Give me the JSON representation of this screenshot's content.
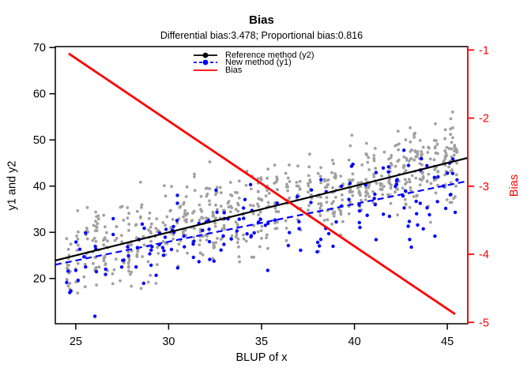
{
  "chart_data": {
    "type": "scatter",
    "title": "Bias",
    "subtitle": "Differential bias:3.478; Proportional bias:0.816",
    "stats": {
      "differential_bias": 3.478,
      "proportional_bias": 0.816
    },
    "xlabel": "BLUP of x",
    "ylabel_left": "y1 and y2",
    "ylabel_right": "Bias",
    "grid": false,
    "background": "#ffffff",
    "axes": {
      "x": {
        "ticks": [
          25,
          30,
          35,
          40,
          45
        ],
        "lim": [
          23.9,
          46.1
        ],
        "color": "#000000"
      },
      "y_left": {
        "ticks": [
          20,
          30,
          40,
          50,
          60,
          70
        ],
        "lim": [
          10.2,
          70.2
        ],
        "color": "#000000"
      },
      "y_right": {
        "ticks": [
          -1,
          -2,
          -3,
          -4,
          -5
        ],
        "lim": [
          -5.02,
          -0.95
        ],
        "color": "#ff0000"
      }
    },
    "legend": {
      "position": "top-center",
      "items": [
        {
          "label": "Reference method (y2)",
          "color": "#000000",
          "dash": "solid",
          "marker": true
        },
        {
          "label": "New method (y1)",
          "color": "#0000ff",
          "dash": "dashed",
          "marker": true
        },
        {
          "label": "Bias",
          "color": "#ff0000",
          "dash": "solid",
          "marker": false
        }
      ]
    },
    "lines": [
      {
        "name": "reference-fit",
        "axis": "left",
        "color": "#000000",
        "dash": "solid",
        "width": 2.2,
        "intercept": 0,
        "slope": 1,
        "x_range": [
          23.9,
          46.1
        ]
      },
      {
        "name": "new-method-fit",
        "axis": "left",
        "color": "#0000ff",
        "dash": "dashed",
        "width": 2.2,
        "intercept": 3.478,
        "slope": 0.816,
        "x_range": [
          23.9,
          46.1
        ]
      },
      {
        "name": "bias-line",
        "axis": "right",
        "color": "#ff0000",
        "dash": "solid",
        "width": 2.8,
        "intercept": 3.478,
        "slope": -0.184,
        "x_range": [
          24.62,
          45.42
        ]
      }
    ],
    "scatter": {
      "seed": 11,
      "noise_sd": 4.2,
      "column_offset_sd": 1.0,
      "x_jitter": 0.12,
      "y_clamp": [
        11.8,
        68.5
      ],
      "series": [
        {
          "name": "Reference method (y2)",
          "color": "#a0a0a0",
          "radius": 1.9,
          "mean_intercept": 0,
          "mean_slope": 1,
          "count_per_column": [
            7,
            22
          ]
        },
        {
          "name": "New method (y1)",
          "color": "#0000ff",
          "radius": 2.2,
          "mean_intercept": 3.478,
          "mean_slope": 0.816,
          "count_per_column": [
            2,
            5
          ]
        }
      ],
      "columns": [
        24.62,
        25.1,
        25.55,
        26.0,
        26.15,
        26.6,
        27.1,
        27.5,
        27.9,
        28.3,
        28.6,
        29.0,
        29.4,
        29.8,
        30.2,
        30.55,
        30.9,
        31.3,
        31.75,
        32.1,
        32.5,
        32.9,
        33.3,
        33.7,
        34.1,
        34.5,
        34.9,
        35.3,
        35.8,
        36.4,
        37.0,
        37.6,
        38.1,
        38.5,
        38.9,
        39.3,
        39.8,
        40.3,
        40.7,
        41.1,
        41.5,
        41.9,
        42.3,
        42.7,
        43.0,
        43.3,
        43.6,
        44.0,
        44.4,
        44.9,
        45.2,
        45.42
      ]
    }
  }
}
